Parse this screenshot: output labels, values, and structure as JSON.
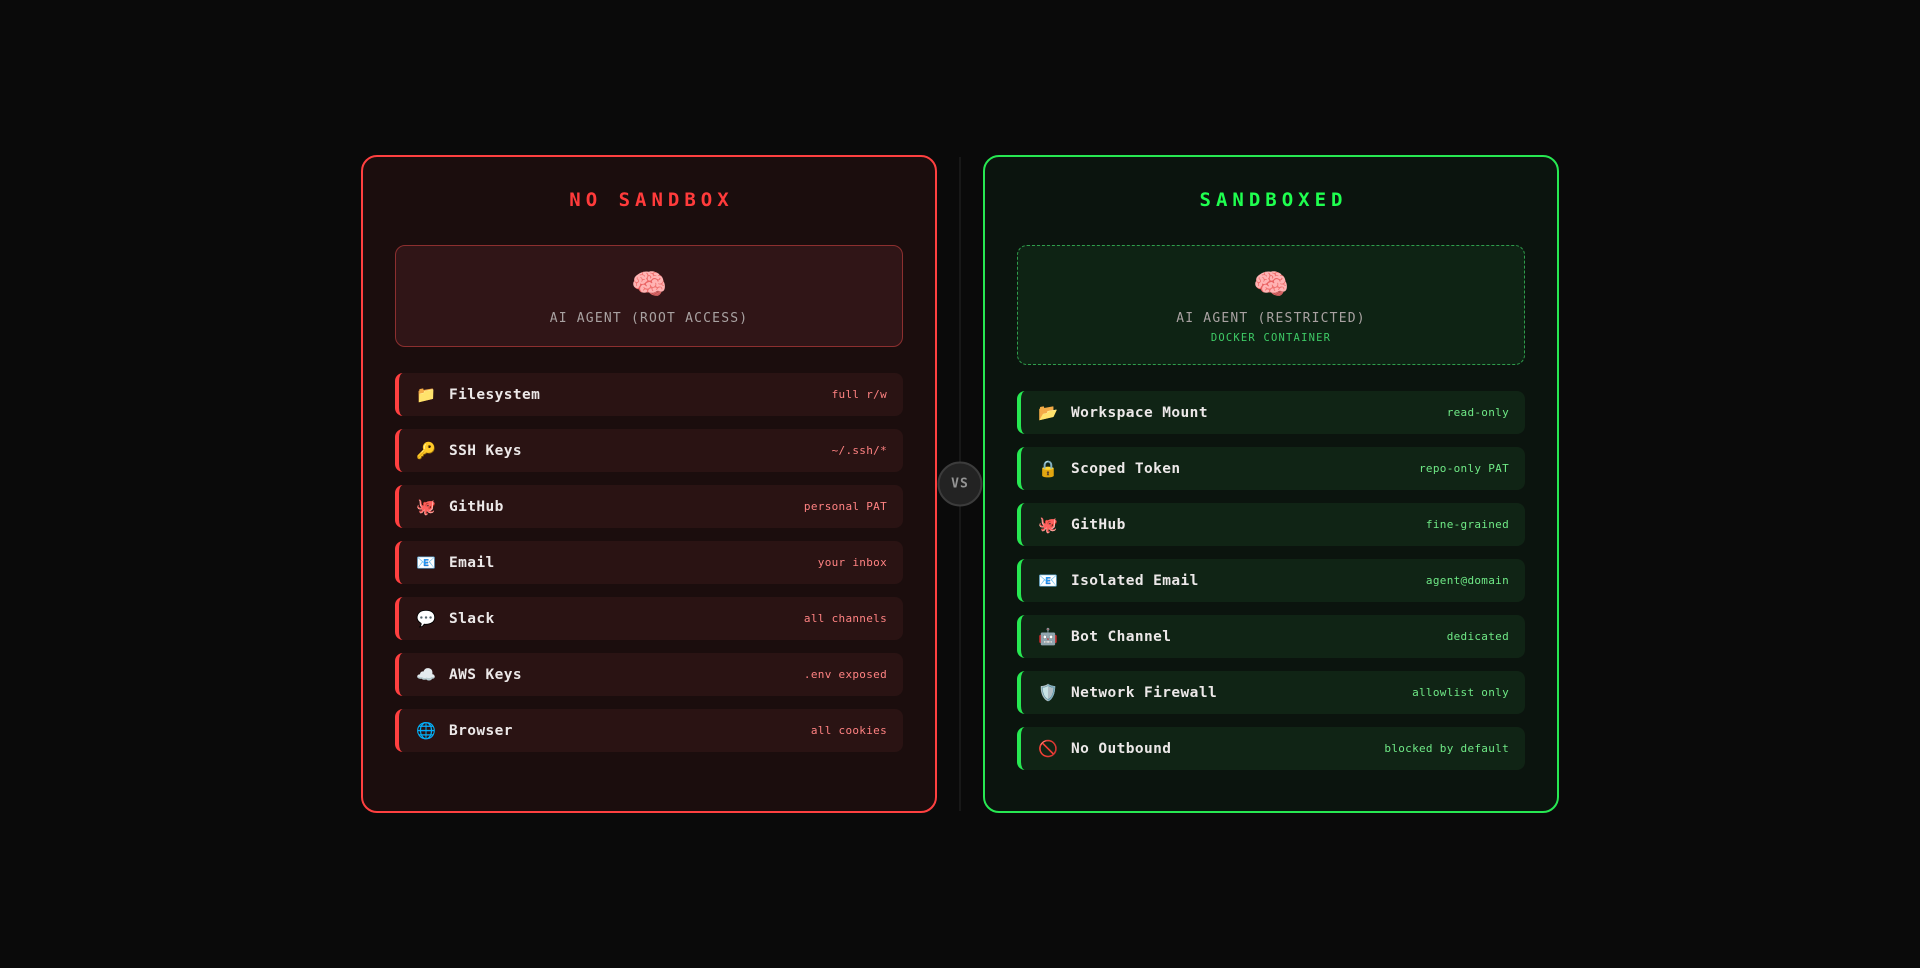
{
  "vs_badge": {
    "label": "VS"
  },
  "colors": {
    "page_background": "#0a0a0a",
    "danger_accent": "#ff4040",
    "danger_value_text": "#ff8282",
    "safe_accent": "#27e852",
    "safe_value_text": "#6fe986",
    "agent_name_text": "#a9a2a2",
    "docker_label_text": "#3ecb66",
    "vs_text": "#949494"
  },
  "panels": {
    "left": {
      "title": "NO SANDBOX",
      "agent": {
        "icon": "🧠",
        "name": "AI AGENT (ROOT ACCESS)",
        "sub": ""
      },
      "items": [
        {
          "icon": "📁",
          "label": "Filesystem",
          "value": "full r/w"
        },
        {
          "icon": "🔑",
          "label": "SSH Keys",
          "value": "~/.ssh/*"
        },
        {
          "icon": "🐙",
          "label": "GitHub",
          "value": "personal PAT"
        },
        {
          "icon": "📧",
          "label": "Email",
          "value": "your inbox"
        },
        {
          "icon": "💬",
          "label": "Slack",
          "value": "all channels"
        },
        {
          "icon": "☁️",
          "label": "AWS Keys",
          "value": ".env exposed"
        },
        {
          "icon": "🌐",
          "label": "Browser",
          "value": "all cookies"
        }
      ]
    },
    "right": {
      "title": "SANDBOXED",
      "agent": {
        "icon": "🧠",
        "name": "AI AGENT (RESTRICTED)",
        "sub": "DOCKER CONTAINER"
      },
      "items": [
        {
          "icon": "📂",
          "label": "Workspace Mount",
          "value": "read-only"
        },
        {
          "icon": "🔒",
          "label": "Scoped Token",
          "value": "repo-only PAT"
        },
        {
          "icon": "🐙",
          "label": "GitHub",
          "value": "fine-grained"
        },
        {
          "icon": "📧",
          "label": "Isolated Email",
          "value": "agent@domain"
        },
        {
          "icon": "🤖",
          "label": "Bot Channel",
          "value": "dedicated"
        },
        {
          "icon": "🛡️",
          "label": "Network Firewall",
          "value": "allowlist only"
        },
        {
          "icon": "🚫",
          "label": "No Outbound",
          "value": "blocked by default"
        }
      ]
    }
  }
}
